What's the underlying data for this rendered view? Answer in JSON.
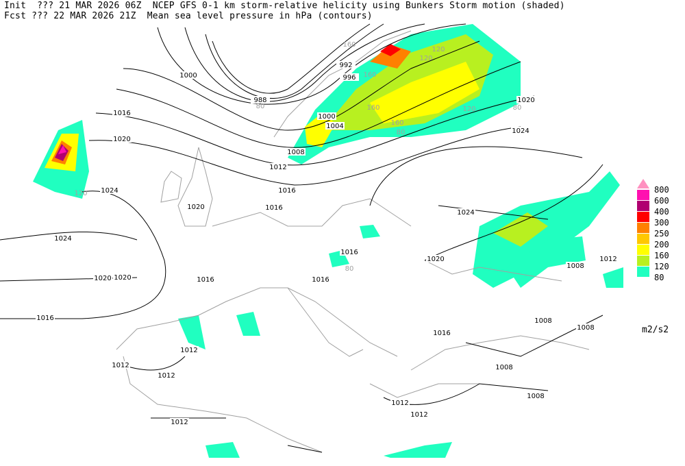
{
  "header": {
    "line1": "Init  ??? 21 MAR 2026 06Z  NCEP GFS 0-1 km storm-relative helicity using Bunkers Storm motion (shaded)",
    "line2": "Fcst ??? 22 MAR 2026 21Z  Mean sea level pressure in hPa (contours)"
  },
  "legend": {
    "unit": "m2/s2",
    "levels": [
      {
        "label": "800",
        "color": "#ff90c0"
      },
      {
        "label": "600",
        "color": "#ff10b0"
      },
      {
        "label": "400",
        "color": "#b00070"
      },
      {
        "label": "300",
        "color": "#ff0000"
      },
      {
        "label": "250",
        "color": "#ff8000"
      },
      {
        "label": "200",
        "color": "#ffc800"
      },
      {
        "label": "160",
        "color": "#ffff00"
      },
      {
        "label": "120",
        "color": "#b8f020"
      },
      {
        "label": "80",
        "color": "#20ffc0"
      }
    ]
  },
  "map": {
    "coastline_color": "#a0a0a0",
    "contour_color": "#000000",
    "isobar_labels": [
      "1000",
      "1016",
      "1020",
      "1024",
      "1020",
      "1024",
      "1016",
      "1020",
      "1016",
      "1012",
      "1012",
      "1012",
      "1012",
      "1016",
      "1016",
      "1016",
      "1020",
      "1024",
      "1020",
      "1008",
      "1012",
      "1008",
      "1008",
      "1008",
      "1008",
      "1012",
      "1012",
      "1016",
      "992",
      "996",
      "988",
      "1000",
      "1004",
      "1008",
      "1012",
      "1016",
      "1020",
      "1024"
    ],
    "helicity_labels": [
      "120",
      "160",
      "120",
      "160",
      "120",
      "160",
      "80",
      "80",
      "80",
      "80",
      "160",
      "120"
    ]
  }
}
